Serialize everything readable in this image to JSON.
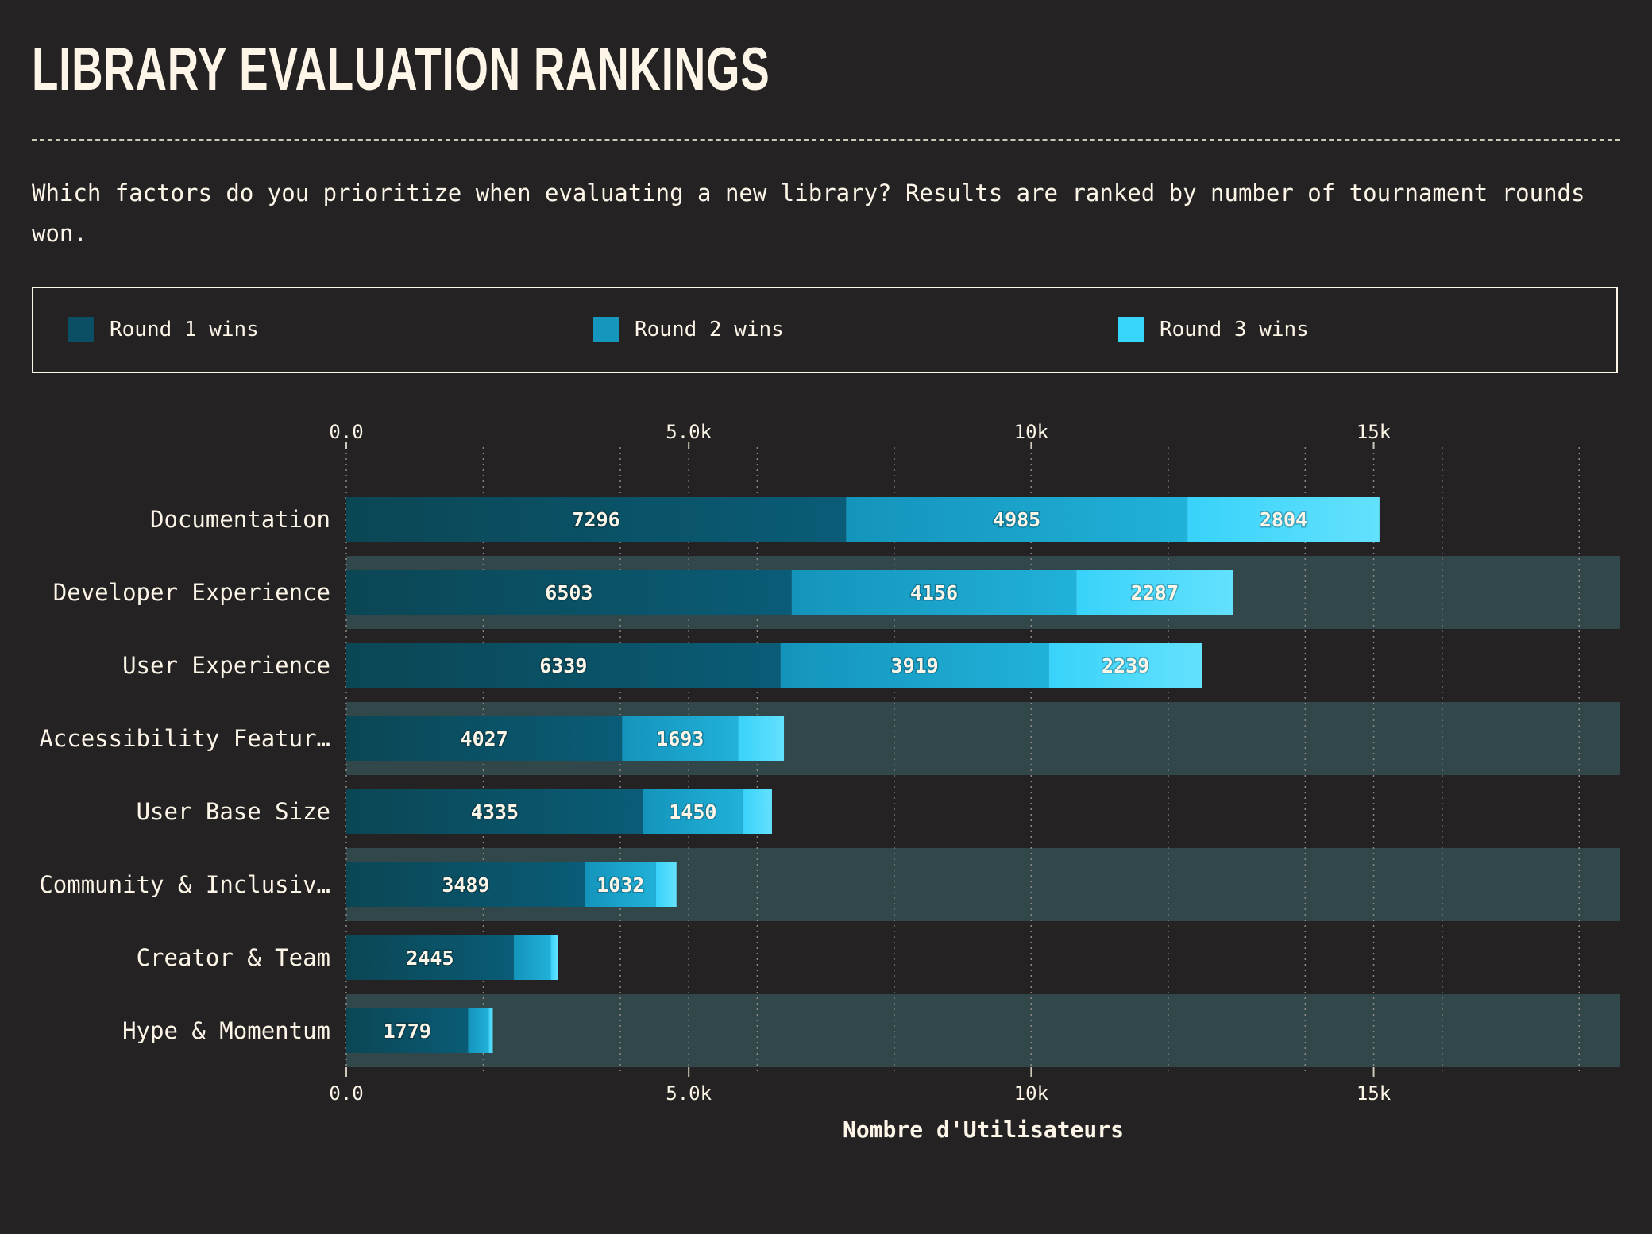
{
  "title": "LIBRARY EVALUATION RANKINGS",
  "subtitle": "Which factors do you prioritize when evaluating a new library? Results are ranked by number of tournament rounds won.",
  "legend": [
    {
      "label": "Round 1 wins",
      "color": "#0b4f65"
    },
    {
      "label": "Round 2 wins",
      "color": "#1496bd"
    },
    {
      "label": "Round 3 wins",
      "color": "#36d5fb"
    }
  ],
  "colors": {
    "background": "#252223",
    "stripe": "#31474a",
    "text": "#fdf6e8",
    "grid": "#8d8a86"
  },
  "chart_data": {
    "type": "bar",
    "orientation": "horizontal",
    "stacked": true,
    "categories": [
      "Documentation",
      "Developer Experience",
      "User Experience",
      "Accessibility Featur…",
      "User Base Size",
      "Community & Inclusiv…",
      "Creator & Team",
      "Hype & Momentum"
    ],
    "series": [
      {
        "name": "Round 1 wins",
        "values": [
          7296,
          6503,
          6339,
          4027,
          4335,
          3489,
          2445,
          1779
        ]
      },
      {
        "name": "Round 2 wins",
        "values": [
          4985,
          4156,
          3919,
          1693,
          1450,
          1032,
          540,
          300
        ]
      },
      {
        "name": "Round 3 wins",
        "values": [
          2804,
          2287,
          2239,
          670,
          430,
          300,
          100,
          60
        ]
      }
    ],
    "value_labels": [
      [
        "7296",
        "4985",
        "2804"
      ],
      [
        "6503",
        "4156",
        "2287"
      ],
      [
        "6339",
        "3919",
        "2239"
      ],
      [
        "4027",
        "1693",
        ""
      ],
      [
        "4335",
        "1450",
        ""
      ],
      [
        "3489",
        "1032",
        ""
      ],
      [
        "2445",
        "",
        ""
      ],
      [
        "1779",
        "",
        ""
      ]
    ],
    "x_ticks": [
      {
        "value": 0,
        "label": "0.0"
      },
      {
        "value": 5000,
        "label": "5.0k"
      },
      {
        "value": 10000,
        "label": "10k"
      },
      {
        "value": 15000,
        "label": "15k"
      }
    ],
    "xlim": [
      0,
      18600
    ],
    "xlabel": "Nombre d'Utilisateurs",
    "ylabel": "",
    "grid": true,
    "grid_style": "dotted",
    "legend_position": "top"
  }
}
